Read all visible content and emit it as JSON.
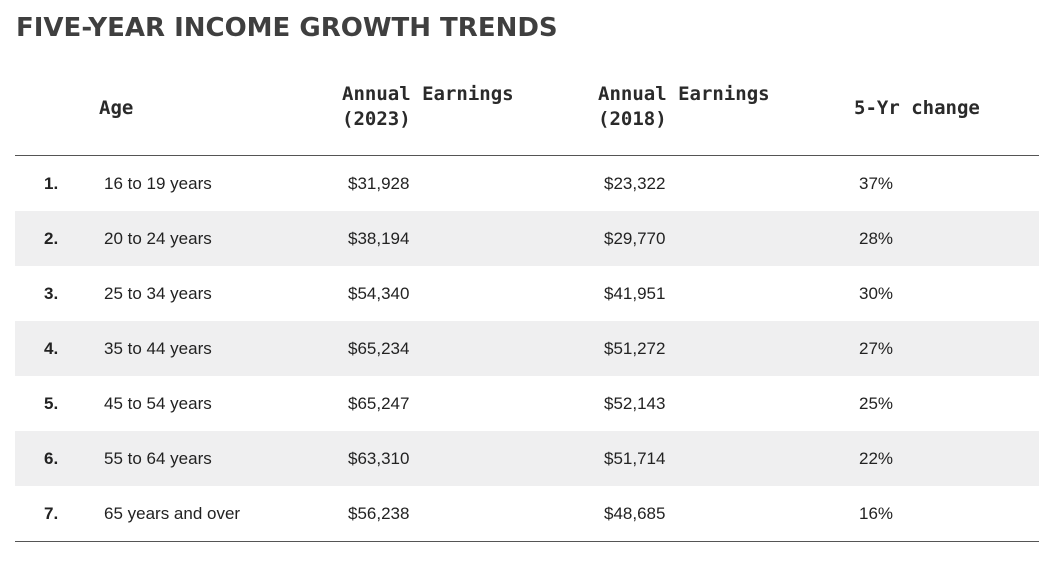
{
  "title": "FIVE-YEAR INCOME GROWTH TRENDS",
  "table": {
    "headers": {
      "age": "Age",
      "earnings_2023": "Annual Earnings\n(2023)",
      "earnings_2018": "Annual Earnings\n(2018)",
      "change": "5-Yr change"
    },
    "rows": [
      {
        "num": "1.",
        "age": "16 to 19 years",
        "earnings_2023": "$31,928",
        "earnings_2018": "$23,322",
        "change": "37%"
      },
      {
        "num": "2.",
        "age": "20 to 24 years",
        "earnings_2023": "$38,194",
        "earnings_2018": "$29,770",
        "change": "28%"
      },
      {
        "num": "3.",
        "age": "25 to 34 years",
        "earnings_2023": "$54,340",
        "earnings_2018": "$41,951",
        "change": "30%"
      },
      {
        "num": "4.",
        "age": "35 to 44 years",
        "earnings_2023": "$65,234",
        "earnings_2018": "$51,272",
        "change": "27%"
      },
      {
        "num": "5.",
        "age": "45 to 54 years",
        "earnings_2023": "$65,247",
        "earnings_2018": "$52,143",
        "change": "25%"
      },
      {
        "num": "6.",
        "age": "55 to 64 years",
        "earnings_2023": "$63,310",
        "earnings_2018": "$51,714",
        "change": "22%"
      },
      {
        "num": "7.",
        "age": "65 years and over",
        "earnings_2023": "$56,238",
        "earnings_2018": "$48,685",
        "change": "16%"
      }
    ]
  },
  "colors": {
    "row_shade": "#efeff0",
    "title": "#3f3f3f",
    "rule": "#555555"
  }
}
